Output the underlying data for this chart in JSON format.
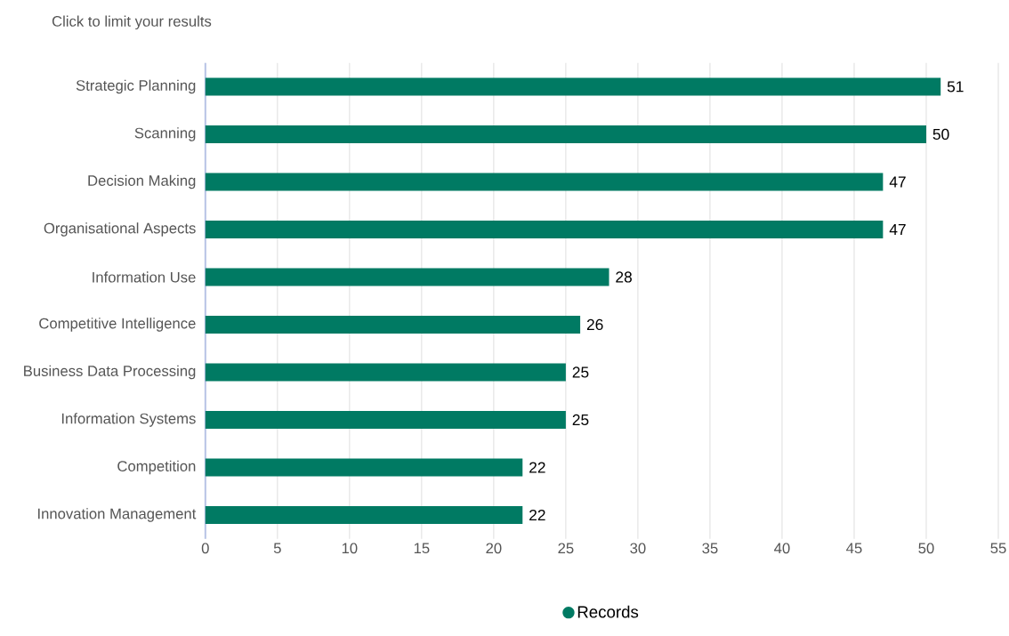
{
  "chart_data": {
    "type": "bar",
    "orientation": "horizontal",
    "title": "Click to limit your results",
    "categories": [
      "Strategic Planning",
      "Scanning",
      "Decision Making",
      "Organisational Aspects",
      "Information Use",
      "Competitive Intelligence",
      "Business Data Processing",
      "Information Systems",
      "Competition",
      "Innovation Management"
    ],
    "series": [
      {
        "name": "Records",
        "color": "#007a63",
        "values": [
          51,
          50,
          47,
          47,
          28,
          26,
          25,
          25,
          22,
          22
        ]
      }
    ],
    "xlim": [
      0,
      55
    ],
    "xticks": [
      0,
      5,
      10,
      15,
      20,
      25,
      30,
      35,
      40,
      45,
      50,
      55
    ],
    "grid": "x",
    "legend": "bottom",
    "data_labels": true
  }
}
